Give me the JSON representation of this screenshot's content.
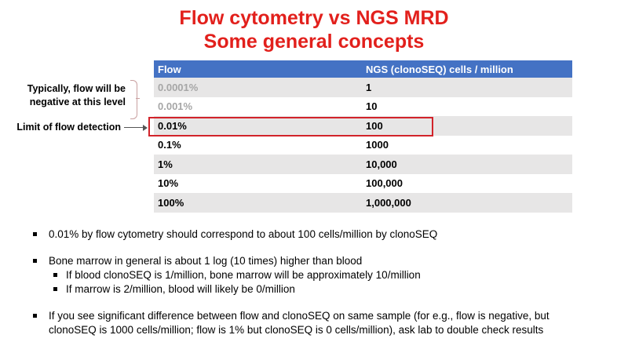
{
  "title": {
    "line1": "Flow cytometry vs NGS MRD",
    "line2": "Some general concepts"
  },
  "table": {
    "headers": [
      "Flow",
      "NGS (clonoSEQ) cells / million"
    ],
    "rows": [
      {
        "flow": "0.0001%",
        "ngs": "1"
      },
      {
        "flow": "0.001%",
        "ngs": "10"
      },
      {
        "flow": "0.01%",
        "ngs": "100"
      },
      {
        "flow": "0.1%",
        "ngs": "1000"
      },
      {
        "flow": "1%",
        "ngs": "10,000"
      },
      {
        "flow": "10%",
        "ngs": "100,000"
      },
      {
        "flow": "100%",
        "ngs": "1,000,000"
      }
    ]
  },
  "annotations": {
    "typically": [
      "Typically, flow will be",
      "negative at this level"
    ],
    "limit": "Limit of flow detection"
  },
  "bullets": {
    "b1": "0.01% by flow cytometry should correspond to about 100 cells/million by clonoSEQ",
    "b2": "Bone marrow in general is about 1 log (10 times) higher than blood",
    "b2_sub1": "If blood clonoSEQ is 1/million, bone marrow will be approximately 10/million",
    "b2_sub2": "If marrow is 2/million, blood will likely be 0/million",
    "b3_line1": "If you see significant difference between flow and clonoSEQ on same sample (for e.g., flow is negative, but",
    "b3_line2": "clonoSEQ is 1000 cells/million; flow is 1% but clonoSEQ is 0 cells/million), ask lab to double check results"
  },
  "colors": {
    "title": "#e2201c",
    "header_bg": "#4472c4",
    "row_alt_bg": "#e7e6e6",
    "highlight_border": "#d2232a",
    "muted_text": "#a6a6a6"
  }
}
